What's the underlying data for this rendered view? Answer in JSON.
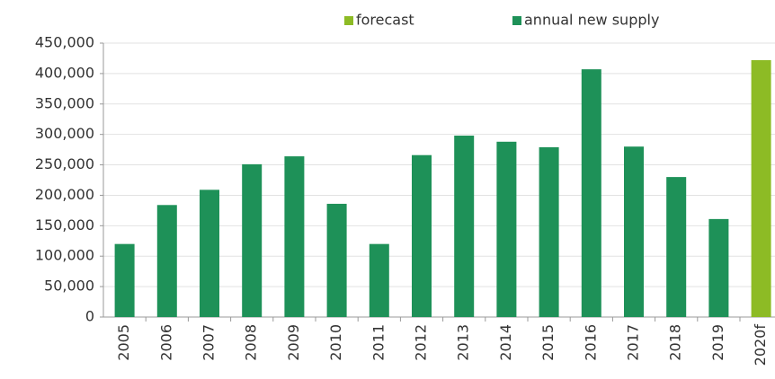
{
  "chart_data": {
    "type": "bar",
    "categories": [
      "2005",
      "2006",
      "2007",
      "2008",
      "2009",
      "2010",
      "2011",
      "2012",
      "2013",
      "2014",
      "2015",
      "2016",
      "2017",
      "2018",
      "2019",
      "2020f"
    ],
    "series": [
      {
        "name": "forecast",
        "color": "#8dbb25",
        "values": [
          null,
          null,
          null,
          null,
          null,
          null,
          null,
          null,
          null,
          null,
          null,
          null,
          null,
          null,
          null,
          422000
        ]
      },
      {
        "name": "annual new supply",
        "color": "#1e9158",
        "values": [
          120000,
          184000,
          209000,
          251000,
          264000,
          186000,
          120000,
          266000,
          298000,
          288000,
          279000,
          407000,
          280000,
          230000,
          161000,
          null
        ]
      }
    ],
    "ylim": [
      0,
      450000
    ],
    "yticks": [
      0,
      {
        "value": 50000,
        "label": "50,000"
      },
      {
        "value": 100000,
        "label": "100,000"
      },
      {
        "value": 150000,
        "label": "150,000"
      },
      {
        "value": 200000,
        "label": "200,000"
      },
      {
        "value": 250000,
        "label": "250,000"
      },
      {
        "value": 300000,
        "label": "300,000"
      },
      {
        "value": 350000,
        "label": "350,000"
      },
      {
        "value": 400000,
        "label": "400,000"
      },
      {
        "value": 450000,
        "label": "450,000"
      }
    ],
    "grid": true
  }
}
